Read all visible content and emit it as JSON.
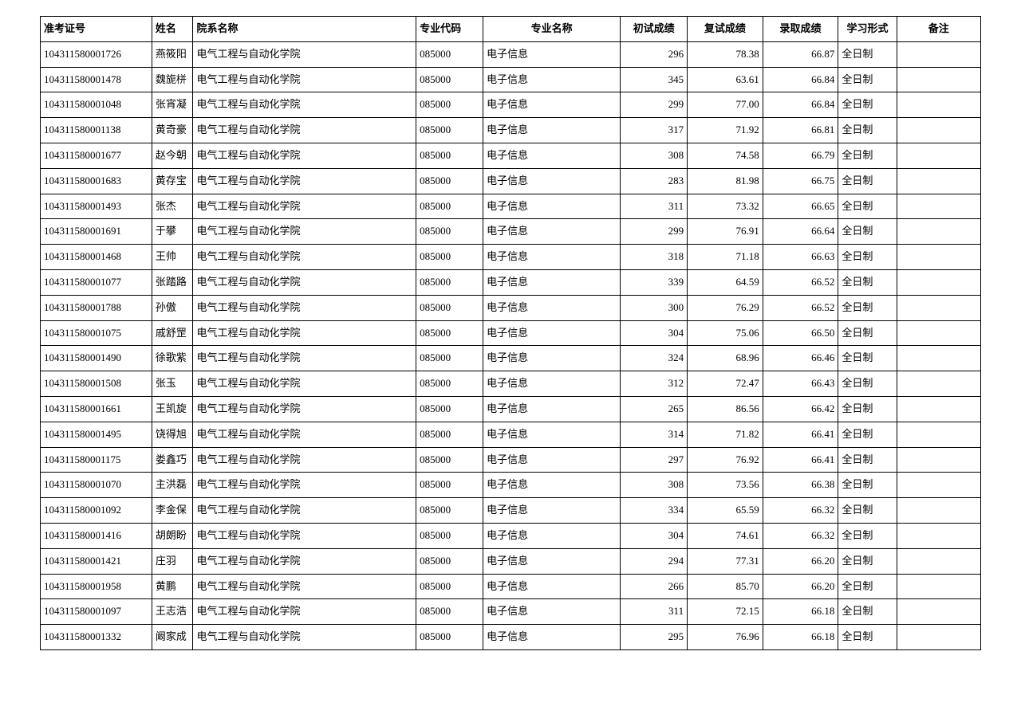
{
  "columns": [
    {
      "label": "准考证号",
      "align": "left"
    },
    {
      "label": "姓名",
      "align": "left"
    },
    {
      "label": "院系名称",
      "align": "left"
    },
    {
      "label": "专业代码",
      "align": "left"
    },
    {
      "label": "专业名称",
      "align": "center"
    },
    {
      "label": "初试成绩",
      "align": "center"
    },
    {
      "label": "复试成绩",
      "align": "center"
    },
    {
      "label": "录取成绩",
      "align": "center"
    },
    {
      "label": "学习形式",
      "align": "center"
    },
    {
      "label": "备注",
      "align": "center"
    }
  ],
  "rows": [
    [
      "104311580001726",
      "燕筱阳",
      "电气工程与自动化学院",
      "085000",
      "电子信息",
      "296",
      "78.38",
      "66.87",
      "全日制",
      ""
    ],
    [
      "104311580001478",
      "魏旎栟",
      "电气工程与自动化学院",
      "085000",
      "电子信息",
      "345",
      "63.61",
      "66.84",
      "全日制",
      ""
    ],
    [
      "104311580001048",
      "张宵凝",
      "电气工程与自动化学院",
      "085000",
      "电子信息",
      "299",
      "77.00",
      "66.84",
      "全日制",
      ""
    ],
    [
      "104311580001138",
      "黄奇豪",
      "电气工程与自动化学院",
      "085000",
      "电子信息",
      "317",
      "71.92",
      "66.81",
      "全日制",
      ""
    ],
    [
      "104311580001677",
      "赵今朝",
      "电气工程与自动化学院",
      "085000",
      "电子信息",
      "308",
      "74.58",
      "66.79",
      "全日制",
      ""
    ],
    [
      "104311580001683",
      "黄存宝",
      "电气工程与自动化学院",
      "085000",
      "电子信息",
      "283",
      "81.98",
      "66.75",
      "全日制",
      ""
    ],
    [
      "104311580001493",
      "张杰",
      "电气工程与自动化学院",
      "085000",
      "电子信息",
      "311",
      "73.32",
      "66.65",
      "全日制",
      ""
    ],
    [
      "104311580001691",
      "于攀",
      "电气工程与自动化学院",
      "085000",
      "电子信息",
      "299",
      "76.91",
      "66.64",
      "全日制",
      ""
    ],
    [
      "104311580001468",
      "王帅",
      "电气工程与自动化学院",
      "085000",
      "电子信息",
      "318",
      "71.18",
      "66.63",
      "全日制",
      ""
    ],
    [
      "104311580001077",
      "张踏路",
      "电气工程与自动化学院",
      "085000",
      "电子信息",
      "339",
      "64.59",
      "66.52",
      "全日制",
      ""
    ],
    [
      "104311580001788",
      "孙傲",
      "电气工程与自动化学院",
      "085000",
      "电子信息",
      "300",
      "76.29",
      "66.52",
      "全日制",
      ""
    ],
    [
      "104311580001075",
      "戚舒罡",
      "电气工程与自动化学院",
      "085000",
      "电子信息",
      "304",
      "75.06",
      "66.50",
      "全日制",
      ""
    ],
    [
      "104311580001490",
      "徐歌紫",
      "电气工程与自动化学院",
      "085000",
      "电子信息",
      "324",
      "68.96",
      "66.46",
      "全日制",
      ""
    ],
    [
      "104311580001508",
      "张玉",
      "电气工程与自动化学院",
      "085000",
      "电子信息",
      "312",
      "72.47",
      "66.43",
      "全日制",
      ""
    ],
    [
      "104311580001661",
      "王凯旋",
      "电气工程与自动化学院",
      "085000",
      "电子信息",
      "265",
      "86.56",
      "66.42",
      "全日制",
      ""
    ],
    [
      "104311580001495",
      "饶得旭",
      "电气工程与自动化学院",
      "085000",
      "电子信息",
      "314",
      "71.82",
      "66.41",
      "全日制",
      ""
    ],
    [
      "104311580001175",
      "娄鑫巧",
      "电气工程与自动化学院",
      "085000",
      "电子信息",
      "297",
      "76.92",
      "66.41",
      "全日制",
      ""
    ],
    [
      "104311580001070",
      "主洪磊",
      "电气工程与自动化学院",
      "085000",
      "电子信息",
      "308",
      "73.56",
      "66.38",
      "全日制",
      ""
    ],
    [
      "104311580001092",
      "李金保",
      "电气工程与自动化学院",
      "085000",
      "电子信息",
      "334",
      "65.59",
      "66.32",
      "全日制",
      ""
    ],
    [
      "104311580001416",
      "胡朗盼",
      "电气工程与自动化学院",
      "085000",
      "电子信息",
      "304",
      "74.61",
      "66.32",
      "全日制",
      ""
    ],
    [
      "104311580001421",
      "庄羽",
      "电气工程与自动化学院",
      "085000",
      "电子信息",
      "294",
      "77.31",
      "66.20",
      "全日制",
      ""
    ],
    [
      "104311580001958",
      "黄鹏",
      "电气工程与自动化学院",
      "085000",
      "电子信息",
      "266",
      "85.70",
      "66.20",
      "全日制",
      ""
    ],
    [
      "104311580001097",
      "王志浩",
      "电气工程与自动化学院",
      "085000",
      "电子信息",
      "311",
      "72.15",
      "66.18",
      "全日制",
      ""
    ],
    [
      "104311580001332",
      "阚家成",
      "电气工程与自动化学院",
      "085000",
      "电子信息",
      "295",
      "76.96",
      "66.18",
      "全日制",
      ""
    ]
  ],
  "col_aligns": [
    "left",
    "left",
    "left",
    "left",
    "left",
    "right",
    "right",
    "right",
    "left",
    "left"
  ]
}
